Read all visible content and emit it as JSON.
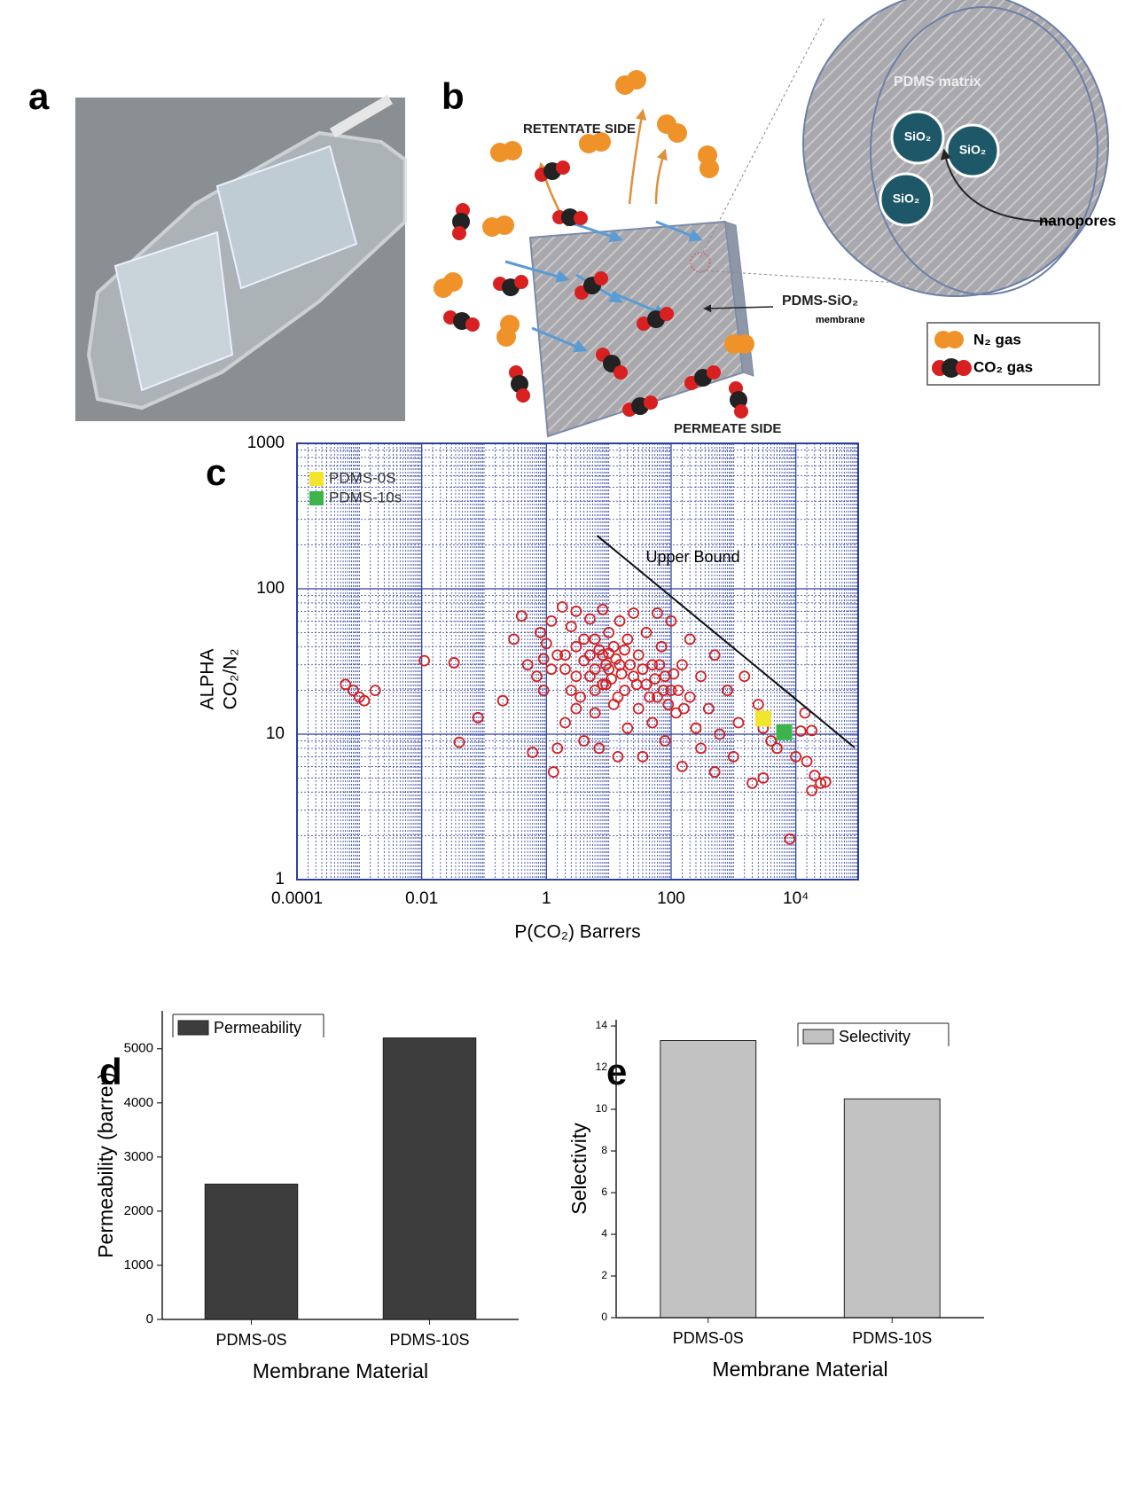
{
  "panel_labels": [
    "a",
    "b",
    "c",
    "d",
    "e"
  ],
  "diagram": {
    "retentate": "RETENTATE SIDE",
    "permeate": "PERMEATE SIDE",
    "membrane": "PDMS-SiO₂",
    "membrane_sub": "membrane",
    "matrix": "PDMS matrix",
    "particles": [
      "SiO₂",
      "SiO₂",
      "SiO₂"
    ],
    "pores": "nanopores",
    "legend": [
      "N₂ gas",
      "CO₂ gas"
    ]
  },
  "chart_data": [
    {
      "type": "scatter",
      "xlabel": "P(CO₂) Barrers",
      "ylabel": [
        "ALPHA",
        "CO₂/N₂"
      ],
      "xscale": "log",
      "yscale": "log",
      "xlim": [
        0.0001,
        100000
      ],
      "ylim": [
        1,
        1000
      ],
      "xticks": [
        0.0001,
        0.01,
        1,
        100,
        {
          "value": 10000,
          "label": "10⁴"
        }
      ],
      "yticks": [
        1,
        10,
        100,
        1000
      ],
      "grid": true,
      "legend": "upper left",
      "series": [
        {
          "color": "#d42020",
          "marker": "circle",
          "x": [
            0.0006,
            0.0008,
            0.001,
            0.0012,
            0.0018,
            0.011,
            0.033,
            0.04,
            0.08,
            0.2,
            0.3,
            0.4,
            0.5,
            0.6,
            0.7,
            0.8,
            0.9,
            1,
            1.2,
            1.3,
            1.5,
            1.5,
            1.8,
            2,
            2,
            2.5,
            3,
            3,
            3.5,
            4,
            4,
            5,
            5,
            6,
            6,
            7,
            8,
            8,
            9,
            10,
            10,
            12,
            12,
            14,
            15,
            15,
            18,
            20,
            20,
            25,
            25,
            30,
            30,
            35,
            40,
            40,
            50,
            50,
            60,
            60,
            70,
            80,
            80,
            100,
            100,
            120,
            150,
            150,
            200,
            200,
            250,
            300,
            300,
            400,
            500,
            500,
            600,
            800,
            1000,
            1200,
            1500,
            2000,
            2500,
            3000,
            3000,
            4000,
            5000,
            8000,
            10000,
            12000,
            14000,
            15000,
            18000,
            18000,
            20000,
            25000,
            30000,
            2,
            3,
            4,
            5,
            6,
            7,
            8,
            9,
            10,
            11,
            13,
            16,
            18,
            22,
            28,
            35,
            45,
            55,
            65,
            75,
            90,
            110,
            130,
            160,
            2.5,
            1.2,
            0.9,
            3,
            6,
            14
          ],
          "values": [
            22,
            20,
            18,
            17,
            20,
            32,
            31,
            8.8,
            13,
            17,
            45,
            65,
            30,
            7.5,
            25,
            50,
            20,
            42,
            60,
            5.5,
            35,
            8,
            75,
            28,
            12,
            55,
            40,
            70,
            18,
            32,
            9,
            62,
            25,
            45,
            14,
            8,
            35,
            72,
            22,
            50,
            28,
            16,
            40,
            7,
            60,
            30,
            20,
            45,
            11,
            25,
            68,
            35,
            15,
            7,
            22,
            50,
            30,
            12,
            18,
            68,
            40,
            25,
            9,
            20,
            60,
            14,
            30,
            6,
            18,
            45,
            11,
            25,
            8,
            15,
            35,
            5.5,
            10,
            20,
            7,
            12,
            25,
            4.6,
            16,
            5,
            11,
            9,
            8,
            1.9,
            7,
            10.5,
            14,
            6.5,
            10.6,
            4.1,
            5.2,
            4.6,
            4.7,
            35,
            25,
            45,
            35,
            28,
            38,
            22,
            30,
            36,
            24,
            33,
            26,
            38,
            30,
            22,
            28,
            18,
            24,
            30,
            20,
            16,
            26,
            20,
            15,
            20,
            28,
            33,
            15,
            20,
            18
          ]
        },
        {
          "name": "PDMS-0S",
          "color": "#f2e52e",
          "marker": "square",
          "x": [
            3000
          ],
          "values": [
            12.8
          ]
        },
        {
          "name": "PDMS-10s",
          "color": "#3cb44b",
          "marker": "square",
          "x": [
            6500
          ],
          "values": [
            10.3
          ]
        }
      ],
      "upper_bound": {
        "label": "Upper Bound",
        "x": [
          6.5,
          87000
        ],
        "values": [
          232,
          8.1
        ]
      }
    },
    {
      "type": "bar",
      "xlabel": "Membrane Material",
      "ylabel": "Permeability (barrer)",
      "categories": [
        "PDMS-0S",
        "PDMS-10S"
      ],
      "series": [
        {
          "name": "Permeability",
          "color": "#3d3d3d",
          "values": [
            2500,
            5200
          ]
        }
      ],
      "ylim": [
        0,
        5700
      ],
      "yticks": [
        0,
        1000,
        2000,
        3000,
        4000,
        5000
      ],
      "legend": "upper left"
    },
    {
      "type": "bar",
      "xlabel": "Membrane Material",
      "ylabel": "Selectivity",
      "categories": [
        "PDMS-0S",
        "PDMS-10S"
      ],
      "series": [
        {
          "name": "Selectivity",
          "color": "#c2c2c2",
          "values": [
            13.3,
            10.5
          ]
        }
      ],
      "ylim": [
        0,
        14.3
      ],
      "yticks": [
        0,
        2,
        4,
        6,
        8,
        10,
        12,
        14
      ],
      "legend": "upper right"
    }
  ]
}
